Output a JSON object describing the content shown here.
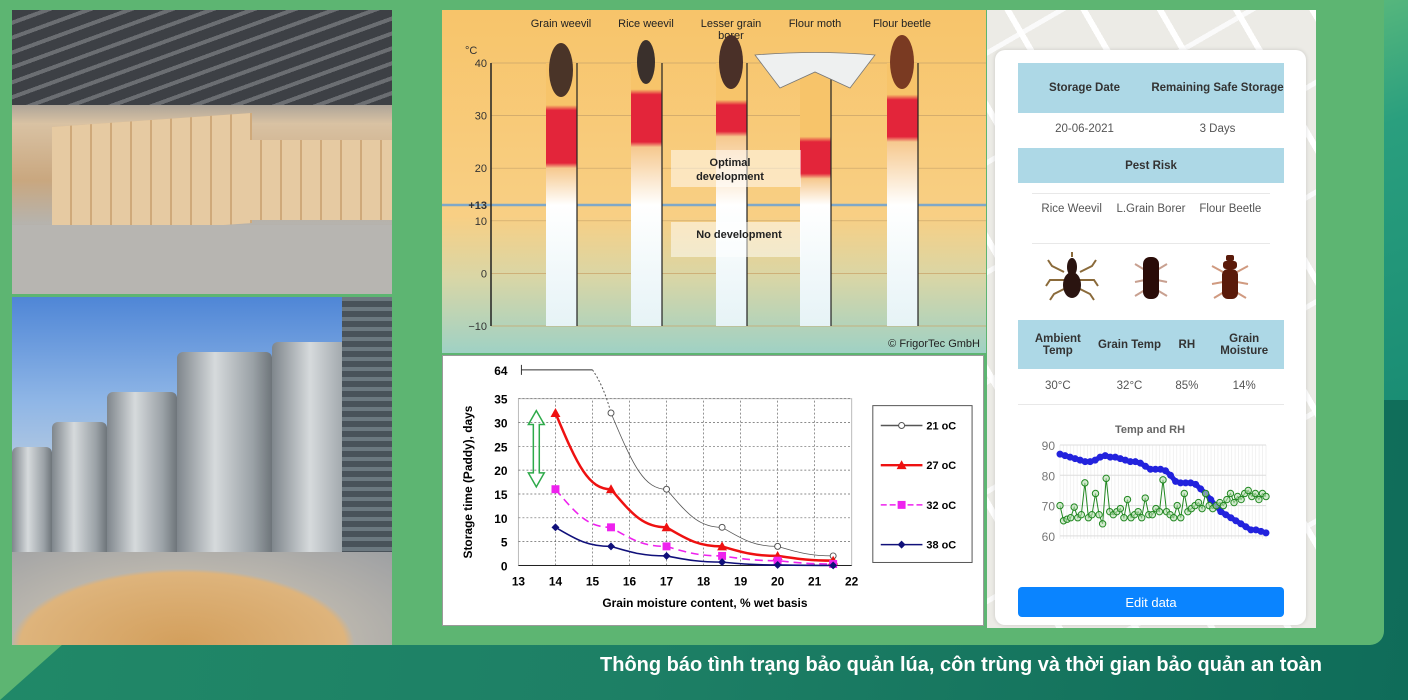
{
  "caption": "Thông báo tình trạng bảo quản lúa, côn trùng và thời gian bảo quản an toàn",
  "colors": {
    "panel_green": "#5db572",
    "header_blue": "#add8e6",
    "button_blue": "#0a84ff",
    "rh_line": "#2222dd",
    "temp_line": "#228822"
  },
  "photos": [
    "warehouse-grain-bags-photo",
    "steel-grain-silos-photo"
  ],
  "app": {
    "storage_date_header": "Storage Date",
    "remaining_header": "Remaining Safe Storage",
    "storage_date": "20-06-2021",
    "remaining": "3 Days",
    "pest_risk_header": "Pest Risk",
    "pests": [
      {
        "name": "Rice Weevil",
        "icon": "rice-weevil-icon"
      },
      {
        "name": "L.Grain Borer",
        "icon": "grain-borer-icon"
      },
      {
        "name": "Flour Beetle",
        "icon": "flour-beetle-icon"
      }
    ],
    "conditions_headers": [
      "Ambient Temp",
      "Grain Temp",
      "RH",
      "Grain Moisture"
    ],
    "conditions_values": [
      "30°C",
      "32°C",
      "85%",
      "14%"
    ],
    "edit_button": "Edit data"
  },
  "chart_data": [
    {
      "type": "range",
      "unit_label": "°C",
      "yticks": [
        "40",
        "30",
        "20",
        "+13",
        "10",
        "0",
        "−10"
      ],
      "ylim": [
        -10,
        40
      ],
      "threshold": 13,
      "categories": [
        "Grain weevil",
        "Rice weevil",
        "Lesser grain borer",
        "Flour moth",
        "Flour beetle"
      ],
      "optimal_ranges": [
        [
          21,
          31
        ],
        [
          25,
          34
        ],
        [
          27,
          32
        ],
        [
          19,
          25
        ],
        [
          26,
          33
        ]
      ],
      "annotations": [
        "Optimal development",
        "No development"
      ],
      "credit": "© FrigorTec GmbH"
    },
    {
      "type": "line",
      "ylabel": "Storage time (Paddy),  days",
      "xlabel": "Grain moisture content,  % wet basis",
      "xlim": [
        13,
        22
      ],
      "ylim": [
        0,
        35
      ],
      "xticks": [
        "13",
        "14",
        "15",
        "16",
        "17",
        "18",
        "19",
        "20",
        "21",
        "22"
      ],
      "yticks": [
        "0",
        "5",
        "10",
        "15",
        "20",
        "25",
        "30",
        "35"
      ],
      "break_label": "64",
      "grid": true,
      "legend": "right",
      "series": [
        {
          "name": "21 oC",
          "x": [
            15.5,
            17,
            18.5,
            20,
            21.5
          ],
          "y": [
            32,
            16,
            8,
            4,
            2
          ],
          "color": "#555555",
          "marker": "circle-open"
        },
        {
          "name": "27 oC",
          "x": [
            14,
            15.5,
            17,
            18.5,
            20,
            21.5
          ],
          "y": [
            32,
            16,
            8,
            4,
            2,
            1
          ],
          "color": "#ee1111",
          "marker": "triangle"
        },
        {
          "name": "32 oC",
          "x": [
            14,
            15.5,
            17,
            18.5,
            20,
            21.5
          ],
          "y": [
            16,
            8,
            4,
            2,
            1,
            0.3
          ],
          "color": "#ee22ee",
          "marker": "square",
          "dashed": true
        },
        {
          "name": "38 oC",
          "x": [
            14,
            15.5,
            17,
            18.5,
            20,
            21.5
          ],
          "y": [
            8,
            4,
            2,
            0.7,
            0.1,
            0
          ],
          "color": "#10107a",
          "marker": "diamond"
        }
      ]
    },
    {
      "type": "line",
      "title": "Temp and RH",
      "ylim": [
        60,
        90
      ],
      "yticks": [
        "90",
        "80",
        "70",
        "60"
      ],
      "series": [
        {
          "color": "#2222dd",
          "values": [
            87,
            86.5,
            86,
            85.5,
            85,
            84.5,
            84.5,
            85,
            86,
            86.5,
            86,
            86,
            85.5,
            85,
            84.5,
            84.5,
            84,
            83,
            82,
            82,
            82,
            81.5,
            80,
            78,
            77.5,
            77.5,
            77.5,
            77,
            75.5,
            74,
            72,
            70,
            68,
            67,
            66,
            65,
            64,
            63,
            62,
            62,
            61.5,
            61
          ]
        },
        {
          "color": "#228822",
          "values": [
            70,
            65,
            65.5,
            66,
            69.5,
            66,
            67,
            77.5,
            66,
            67,
            74,
            67,
            64,
            79,
            68,
            67,
            68,
            69,
            66,
            72,
            66,
            67,
            68,
            66,
            72.5,
            67,
            67,
            69,
            68,
            78.5,
            68,
            67,
            66,
            70,
            66,
            74,
            68,
            69,
            70,
            71,
            69,
            74,
            70,
            69,
            70,
            71,
            70,
            72,
            74,
            71,
            73,
            72,
            74,
            75,
            73,
            74,
            72,
            74,
            73
          ]
        }
      ]
    }
  ]
}
